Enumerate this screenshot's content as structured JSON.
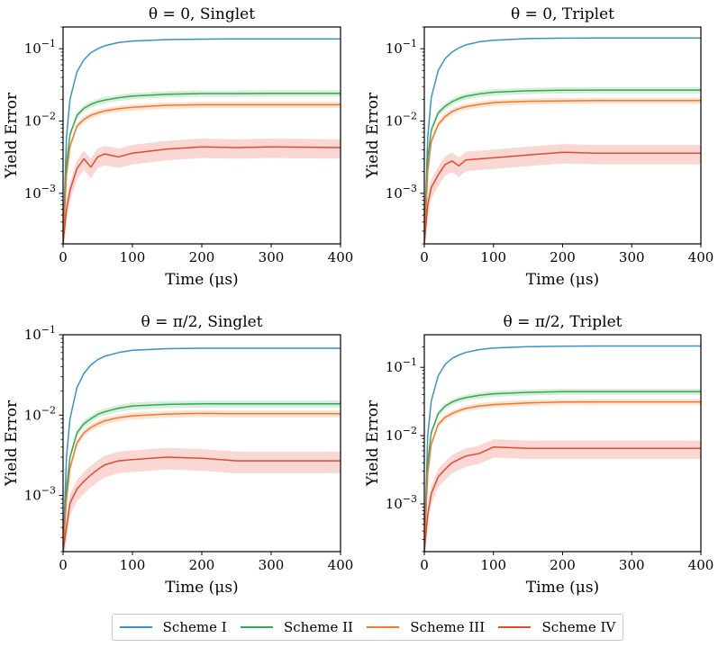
{
  "chart_data": [
    {
      "type": "line",
      "title": "θ = 0, Singlet",
      "xlabel": "Time (μs)",
      "ylabel": "Yield Error",
      "yscale": "log",
      "xlim": [
        0,
        400
      ],
      "ylim": [
        0.0002,
        0.2
      ],
      "xticks": [
        "0",
        "100",
        "200",
        "300",
        "400"
      ],
      "yticks": [
        {
          "value": 0.001,
          "label": "10^-3"
        },
        {
          "value": 0.01,
          "label": "10^-2"
        },
        {
          "value": 0.1,
          "label": "10^-1"
        }
      ],
      "series": [
        {
          "name": "Scheme I",
          "x": [
            0,
            5,
            10,
            20,
            30,
            40,
            50,
            60,
            80,
            100,
            150,
            200,
            250,
            300,
            400
          ],
          "y": [
            0.0002,
            0.006,
            0.02,
            0.048,
            0.07,
            0.088,
            0.1,
            0.11,
            0.122,
            0.128,
            0.134,
            0.136,
            0.137,
            0.137,
            0.137
          ]
        },
        {
          "name": "Scheme II",
          "x": [
            0,
            5,
            10,
            20,
            30,
            40,
            50,
            60,
            80,
            100,
            150,
            200,
            250,
            300,
            400
          ],
          "y": [
            0.0002,
            0.0025,
            0.0065,
            0.012,
            0.015,
            0.017,
            0.0185,
            0.0195,
            0.021,
            0.0222,
            0.0235,
            0.024,
            0.024,
            0.0242,
            0.0242
          ]
        },
        {
          "name": "Scheme III",
          "x": [
            0,
            5,
            10,
            20,
            30,
            40,
            50,
            60,
            80,
            100,
            150,
            200,
            250,
            300,
            400
          ],
          "y": [
            0.0002,
            0.0018,
            0.0045,
            0.0085,
            0.0105,
            0.012,
            0.013,
            0.0138,
            0.0148,
            0.0155,
            0.0165,
            0.0168,
            0.0168,
            0.0168,
            0.0168
          ]
        },
        {
          "name": "Scheme IV",
          "x": [
            0,
            5,
            10,
            20,
            30,
            40,
            50,
            60,
            80,
            100,
            150,
            200,
            250,
            300,
            400
          ],
          "y": [
            0.0002,
            0.0006,
            0.0011,
            0.0022,
            0.003,
            0.0023,
            0.0032,
            0.0035,
            0.0032,
            0.0036,
            0.0041,
            0.0044,
            0.0043,
            0.0044,
            0.0043
          ]
        }
      ]
    },
    {
      "type": "line",
      "title": "θ = 0, Triplet",
      "xlabel": "Time (μs)",
      "ylabel": "Yield Error",
      "yscale": "log",
      "xlim": [
        0,
        400
      ],
      "ylim": [
        0.0002,
        0.2
      ],
      "xticks": [
        "0",
        "100",
        "200",
        "300",
        "400"
      ],
      "yticks": [
        {
          "value": 0.001,
          "label": "10^-3"
        },
        {
          "value": 0.01,
          "label": "10^-2"
        },
        {
          "value": 0.1,
          "label": "10^-1"
        }
      ],
      "series": [
        {
          "name": "Scheme I",
          "x": [
            0,
            5,
            10,
            20,
            30,
            40,
            50,
            60,
            80,
            100,
            150,
            200,
            250,
            300,
            400
          ],
          "y": [
            0.0002,
            0.006,
            0.021,
            0.05,
            0.073,
            0.09,
            0.103,
            0.113,
            0.125,
            0.131,
            0.138,
            0.14,
            0.141,
            0.141,
            0.141
          ]
        },
        {
          "name": "Scheme II",
          "x": [
            0,
            5,
            10,
            20,
            30,
            40,
            50,
            60,
            80,
            100,
            150,
            200,
            250,
            300,
            400
          ],
          "y": [
            0.0002,
            0.003,
            0.0075,
            0.013,
            0.016,
            0.0185,
            0.0205,
            0.022,
            0.0238,
            0.025,
            0.0262,
            0.0267,
            0.0268,
            0.0268,
            0.0268
          ]
        },
        {
          "name": "Scheme III",
          "x": [
            0,
            5,
            10,
            20,
            30,
            40,
            50,
            60,
            80,
            100,
            150,
            200,
            250,
            300,
            400
          ],
          "y": [
            0.0002,
            0.002,
            0.0052,
            0.009,
            0.0115,
            0.0135,
            0.0148,
            0.0158,
            0.017,
            0.018,
            0.0188,
            0.019,
            0.0192,
            0.0192,
            0.0192
          ]
        },
        {
          "name": "Scheme IV",
          "x": [
            0,
            5,
            10,
            20,
            30,
            40,
            50,
            60,
            80,
            100,
            150,
            200,
            250,
            300,
            400
          ],
          "y": [
            0.0002,
            0.0007,
            0.0012,
            0.0018,
            0.0025,
            0.0028,
            0.0024,
            0.0029,
            0.003,
            0.0031,
            0.0034,
            0.0037,
            0.0036,
            0.0036,
            0.0036
          ]
        }
      ]
    },
    {
      "type": "line",
      "title": "θ = π/2, Singlet",
      "xlabel": "Time (μs)",
      "ylabel": "Yield Error",
      "yscale": "log",
      "xlim": [
        0,
        400
      ],
      "ylim": [
        0.0002,
        0.1
      ],
      "xticks": [
        "0",
        "100",
        "200",
        "300",
        "400"
      ],
      "yticks": [
        {
          "value": 0.001,
          "label": "10^-3"
        },
        {
          "value": 0.01,
          "label": "10^-2"
        },
        {
          "value": 0.1,
          "label": "10^-1"
        }
      ],
      "series": [
        {
          "name": "Scheme I",
          "x": [
            0,
            5,
            10,
            20,
            30,
            40,
            50,
            60,
            80,
            100,
            150,
            200,
            250,
            300,
            400
          ],
          "y": [
            0.0002,
            0.003,
            0.009,
            0.022,
            0.033,
            0.042,
            0.049,
            0.054,
            0.06,
            0.064,
            0.067,
            0.068,
            0.068,
            0.068,
            0.068
          ]
        },
        {
          "name": "Scheme II",
          "x": [
            0,
            5,
            10,
            20,
            30,
            40,
            50,
            60,
            80,
            100,
            150,
            200,
            250,
            300,
            400
          ],
          "y": [
            0.0002,
            0.0012,
            0.003,
            0.006,
            0.0078,
            0.009,
            0.0102,
            0.011,
            0.0122,
            0.013,
            0.0136,
            0.0138,
            0.0138,
            0.0138,
            0.0138
          ]
        },
        {
          "name": "Scheme III",
          "x": [
            0,
            5,
            10,
            20,
            30,
            40,
            50,
            60,
            80,
            100,
            150,
            200,
            250,
            300,
            400
          ],
          "y": [
            0.0002,
            0.0009,
            0.0022,
            0.0045,
            0.006,
            0.007,
            0.0078,
            0.0085,
            0.0093,
            0.0098,
            0.0103,
            0.0105,
            0.0104,
            0.0104,
            0.0104
          ]
        },
        {
          "name": "Scheme IV",
          "x": [
            0,
            5,
            10,
            20,
            30,
            40,
            50,
            60,
            80,
            100,
            150,
            200,
            250,
            300,
            400
          ],
          "y": [
            0.0002,
            0.0004,
            0.0008,
            0.0012,
            0.0015,
            0.0018,
            0.0021,
            0.0024,
            0.0027,
            0.0028,
            0.003,
            0.0029,
            0.0027,
            0.0027,
            0.0027
          ]
        }
      ]
    },
    {
      "type": "line",
      "title": "θ = π/2, Triplet",
      "xlabel": "Time (μs)",
      "ylabel": "Yield Error",
      "yscale": "log",
      "xlim": [
        0,
        400
      ],
      "ylim": [
        0.0002,
        0.3
      ],
      "xticks": [
        "0",
        "100",
        "200",
        "300",
        "400"
      ],
      "yticks": [
        {
          "value": 0.001,
          "label": "10^-3"
        },
        {
          "value": 0.01,
          "label": "10^-2"
        },
        {
          "value": 0.1,
          "label": "10^-1"
        }
      ],
      "series": [
        {
          "name": "Scheme I",
          "x": [
            0,
            5,
            10,
            20,
            30,
            40,
            50,
            60,
            80,
            100,
            150,
            200,
            250,
            300,
            400
          ],
          "y": [
            0.0002,
            0.01,
            0.032,
            0.075,
            0.11,
            0.135,
            0.152,
            0.165,
            0.182,
            0.192,
            0.201,
            0.204,
            0.205,
            0.205,
            0.205
          ]
        },
        {
          "name": "Scheme II",
          "x": [
            0,
            5,
            10,
            20,
            30,
            40,
            50,
            60,
            80,
            100,
            150,
            200,
            250,
            300,
            400
          ],
          "y": [
            0.0002,
            0.004,
            0.011,
            0.021,
            0.027,
            0.031,
            0.034,
            0.036,
            0.039,
            0.041,
            0.043,
            0.044,
            0.044,
            0.044,
            0.044
          ]
        },
        {
          "name": "Scheme III",
          "x": [
            0,
            5,
            10,
            20,
            30,
            40,
            50,
            60,
            80,
            100,
            150,
            200,
            250,
            300,
            400
          ],
          "y": [
            0.0002,
            0.0028,
            0.0075,
            0.0145,
            0.0185,
            0.021,
            0.0232,
            0.025,
            0.0272,
            0.0285,
            0.0302,
            0.031,
            0.0312,
            0.0312,
            0.0312
          ]
        },
        {
          "name": "Scheme IV",
          "x": [
            0,
            5,
            10,
            20,
            30,
            40,
            50,
            60,
            80,
            100,
            150,
            200,
            250,
            300,
            400
          ],
          "y": [
            0.0002,
            0.0007,
            0.0014,
            0.0025,
            0.0032,
            0.004,
            0.0045,
            0.005,
            0.0055,
            0.0068,
            0.0065,
            0.0065,
            0.0065,
            0.0065,
            0.0065
          ]
        }
      ]
    }
  ],
  "legend": {
    "placement": "bottom-center",
    "entries": [
      {
        "name": "Scheme I",
        "color": "#3a93c3"
      },
      {
        "name": "Scheme II",
        "color": "#35a852"
      },
      {
        "name": "Scheme III",
        "color": "#f2792a"
      },
      {
        "name": "Scheme IV",
        "color": "#e34a33"
      }
    ]
  },
  "colors": {
    "Scheme I": "#3a93c3",
    "Scheme II": "#35a852",
    "Scheme III": "#f2792a",
    "Scheme IV": "#e34a33"
  }
}
